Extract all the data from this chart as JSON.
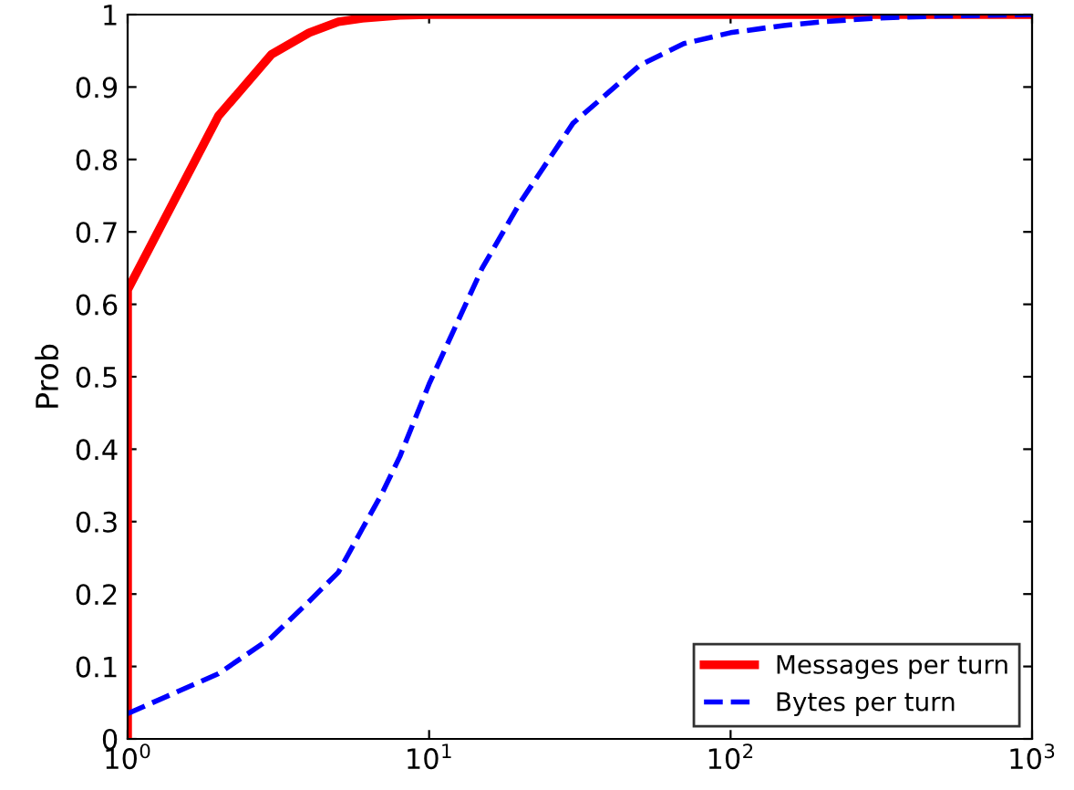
{
  "chart_data": {
    "type": "line",
    "ylabel": "Prob",
    "log": "x",
    "legend": "bottom right",
    "grid": false,
    "xlim": [
      1,
      1000
    ],
    "ylim": [
      0,
      1
    ],
    "xticks": [
      {
        "value": 1,
        "label": "10$^{0}$"
      },
      {
        "value": 10,
        "label": "10$^{1}$"
      },
      {
        "value": 100,
        "label": "10$^{2}$"
      },
      {
        "value": 1000,
        "label": "10$^{3}$"
      }
    ],
    "yticks": [
      0,
      0.1,
      0.2,
      0.3,
      0.4,
      0.5,
      0.6,
      0.7,
      0.8,
      0.9,
      1
    ],
    "series": [
      {
        "name": "Messages per turn",
        "color": "#ff0000",
        "line_style": "solid",
        "x": [
          1,
          1,
          2,
          3,
          4,
          5,
          6,
          8,
          10,
          100,
          1000
        ],
        "values": [
          0,
          0.62,
          0.86,
          0.945,
          0.975,
          0.99,
          0.995,
          0.999,
          1,
          1,
          1
        ]
      },
      {
        "name": "Bytes per turn",
        "color": "#0000ff",
        "line_style": "dashed",
        "x": [
          1,
          2,
          3,
          4,
          5,
          6,
          7,
          8,
          10,
          15,
          20,
          30,
          50,
          70,
          100,
          150,
          200,
          300,
          500,
          1000
        ],
        "values": [
          0.035,
          0.09,
          0.14,
          0.19,
          0.23,
          0.29,
          0.34,
          0.39,
          0.49,
          0.65,
          0.74,
          0.85,
          0.93,
          0.96,
          0.975,
          0.985,
          0.99,
          0.995,
          0.998,
          1
        ]
      }
    ]
  }
}
